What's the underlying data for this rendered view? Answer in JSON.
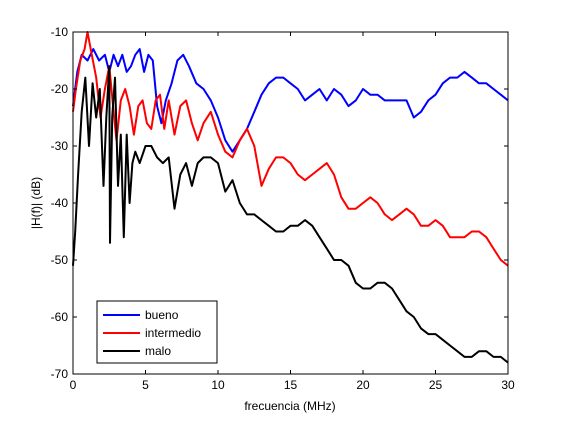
{
  "chart_data": {
    "type": "line",
    "xlabel": "frecuencia (MHz)",
    "ylabel": "|H(f)| (dB)",
    "xlim": [
      0,
      30
    ],
    "ylim": [
      -70,
      -10
    ],
    "xticks": [
      0,
      5,
      10,
      15,
      20,
      25,
      30
    ],
    "yticks": [
      -70,
      -60,
      -50,
      -40,
      -30,
      -20,
      -10
    ],
    "grid": false,
    "legend_position": "bottom-left",
    "series": [
      {
        "name": "bueno",
        "color": "#0000ff",
        "x": [
          0,
          0.3,
          0.6,
          1.0,
          1.4,
          1.8,
          2.2,
          2.5,
          2.8,
          3.1,
          3.4,
          3.7,
          4.0,
          4.3,
          4.6,
          4.9,
          5.2,
          5.5,
          5.8,
          6.1,
          6.4,
          6.8,
          7.2,
          7.6,
          8.0,
          8.5,
          9.0,
          9.5,
          10.0,
          10.5,
          11.0,
          11.5,
          12.0,
          12.5,
          13.0,
          13.5,
          14.0,
          14.5,
          15.0,
          15.5,
          16.0,
          16.5,
          17.0,
          17.5,
          18.0,
          18.5,
          19.0,
          19.5,
          20.0,
          20.5,
          21.0,
          21.5,
          22.0,
          22.5,
          23.0,
          23.5,
          24.0,
          24.5,
          25.0,
          25.5,
          26.0,
          26.5,
          27.0,
          27.5,
          28.0,
          28.5,
          29.0,
          29.5,
          30.0
        ],
        "y": [
          -23,
          -17,
          -14,
          -15,
          -13,
          -15,
          -14,
          -17,
          -14,
          -16,
          -14,
          -17,
          -16,
          -14,
          -13,
          -17,
          -14,
          -15,
          -23,
          -26,
          -22,
          -19,
          -15,
          -14,
          -16,
          -19,
          -20,
          -22,
          -25,
          -29,
          -31,
          -29,
          -27,
          -24,
          -21,
          -19,
          -18,
          -18,
          -19,
          -20,
          -22,
          -21,
          -20,
          -22,
          -20,
          -21,
          -23,
          -22,
          -20,
          -21,
          -21,
          -22,
          -22,
          -22,
          -22,
          -25,
          -24,
          -22,
          -21,
          -19,
          -18,
          -18,
          -17,
          -18,
          -19,
          -19,
          -20,
          -21,
          -22
        ]
      },
      {
        "name": "intermedio",
        "color": "#ff0000",
        "x": [
          0,
          0.2,
          0.5,
          0.8,
          1.0,
          1.3,
          1.6,
          1.9,
          2.2,
          2.5,
          2.8,
          3.0,
          3.3,
          3.6,
          3.9,
          4.2,
          4.5,
          4.8,
          5.1,
          5.4,
          5.7,
          6.0,
          6.3,
          6.6,
          7.0,
          7.4,
          7.8,
          8.2,
          8.6,
          9.0,
          9.5,
          10.0,
          10.5,
          11.0,
          11.5,
          12.0,
          12.5,
          13.0,
          13.5,
          14.0,
          14.5,
          15.0,
          15.5,
          16.0,
          16.5,
          17.0,
          17.5,
          18.0,
          18.5,
          19.0,
          19.5,
          20.0,
          20.5,
          21.0,
          21.5,
          22.0,
          22.5,
          23.0,
          23.5,
          24.0,
          24.5,
          25.0,
          25.5,
          26.0,
          26.5,
          27.0,
          27.5,
          28.0,
          28.5,
          29.0,
          29.5,
          30.0
        ],
        "y": [
          -24,
          -20,
          -15,
          -13,
          -10,
          -14,
          -18,
          -25,
          -20,
          -16,
          -24,
          -29,
          -22,
          -20,
          -23,
          -28,
          -23,
          -22,
          -26,
          -27,
          -22,
          -21,
          -27,
          -22,
          -28,
          -23,
          -22,
          -26,
          -29,
          -26,
          -24,
          -28,
          -31,
          -32,
          -29,
          -27,
          -30,
          -37,
          -34,
          -32,
          -32,
          -33,
          -35,
          -36,
          -35,
          -34,
          -33,
          -35,
          -39,
          -41,
          -41,
          -40,
          -39,
          -40,
          -42,
          -43,
          -42,
          -41,
          -42,
          -44,
          -44,
          -43,
          -44,
          -46,
          -46,
          -46,
          -45,
          -45,
          -46,
          -48,
          -50,
          -51
        ]
      },
      {
        "name": "malo",
        "color": "#000000",
        "x": [
          0,
          0.15,
          0.35,
          0.6,
          0.85,
          1.1,
          1.35,
          1.6,
          1.85,
          2.1,
          2.3,
          2.5,
          2.55,
          2.7,
          2.9,
          3.1,
          3.3,
          3.5,
          3.7,
          3.9,
          4.1,
          4.3,
          4.6,
          5.0,
          5.4,
          5.8,
          6.2,
          6.6,
          7.0,
          7.4,
          7.8,
          8.2,
          8.6,
          9.0,
          9.5,
          10.0,
          10.5,
          11.0,
          11.5,
          12.0,
          12.5,
          13.0,
          13.5,
          14.0,
          14.5,
          15.0,
          15.5,
          16.0,
          16.5,
          17.0,
          17.5,
          18.0,
          18.5,
          19.0,
          19.5,
          20.0,
          20.5,
          21.0,
          21.5,
          22.0,
          22.5,
          23.0,
          23.5,
          24.0,
          24.5,
          25.0,
          25.5,
          26.0,
          26.5,
          27.0,
          27.5,
          28.0,
          28.5,
          29.0,
          29.5,
          30.0
        ],
        "y": [
          -51,
          -45,
          -35,
          -24,
          -18,
          -30,
          -19,
          -25,
          -20,
          -37,
          -25,
          -16,
          -47,
          -25,
          -18,
          -37,
          -28,
          -46,
          -28,
          -40,
          -33,
          -31,
          -33,
          -30,
          -30,
          -32,
          -33,
          -32,
          -41,
          -35,
          -33,
          -37,
          -33,
          -32,
          -32,
          -33,
          -38,
          -36,
          -40,
          -42,
          -42,
          -43,
          -44,
          -45,
          -45,
          -44,
          -44,
          -43,
          -44,
          -46,
          -48,
          -50,
          -50,
          -51,
          -54,
          -55,
          -55,
          -54,
          -54,
          -55,
          -57,
          -59,
          -60,
          -62,
          -63,
          -63,
          -64,
          -65,
          -66,
          -67,
          -67,
          -66,
          -66,
          -67,
          -67,
          -68
        ]
      }
    ]
  }
}
